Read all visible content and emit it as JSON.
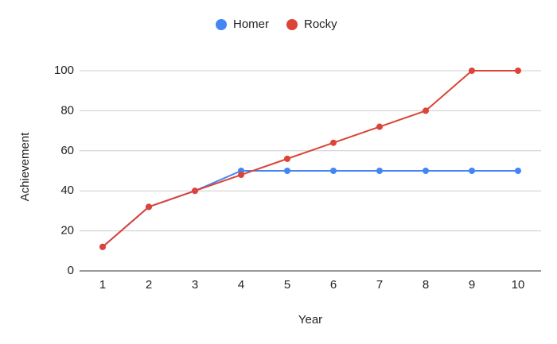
{
  "chart_data": {
    "type": "line",
    "x_label": "Year",
    "y_label": "Achievement",
    "x": [
      1,
      2,
      3,
      4,
      5,
      6,
      7,
      8,
      9,
      10
    ],
    "xlim": [
      0.5,
      10.5
    ],
    "xticks": [
      1,
      2,
      3,
      4,
      5,
      6,
      7,
      8,
      9,
      10
    ],
    "ylim": [
      0,
      100
    ],
    "yticks": [
      0,
      20,
      40,
      60,
      80,
      100
    ],
    "grid": true,
    "legend": "top",
    "series": [
      {
        "name": "Homer",
        "color": "#4285f4",
        "values": [
          12,
          32,
          40,
          50,
          50,
          50,
          50,
          50,
          50,
          50
        ]
      },
      {
        "name": "Rocky",
        "color": "#db4437",
        "values": [
          12,
          32,
          40,
          48,
          56,
          64,
          72,
          80,
          100,
          100
        ]
      }
    ]
  }
}
